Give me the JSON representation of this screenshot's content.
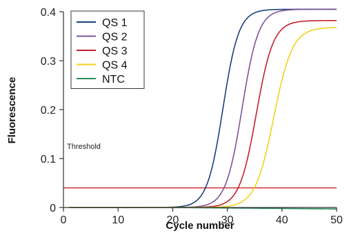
{
  "chart_data": {
    "type": "line",
    "xlabel": "Cycle number",
    "ylabel": "Fluorescence",
    "xlim": [
      0,
      50
    ],
    "ylim": [
      0,
      0.4
    ],
    "x_ticks": [
      "0",
      "10",
      "20",
      "30",
      "40",
      "50"
    ],
    "y_ticks": [
      "0",
      "0.1",
      "0.2",
      "0.3",
      "0.4"
    ],
    "grid": false,
    "legend_position": "top-left",
    "threshold": {
      "label": "Threshold",
      "value": 0.04,
      "color": "#cc2222"
    },
    "series": [
      {
        "name": "QS 1",
        "color": "#1a3f7a",
        "x_start": 1,
        "x_end": 50,
        "baseline": 0.0,
        "plateau": 0.405,
        "midpoint": 29.2,
        "slope": 1.45
      },
      {
        "name": "QS 2",
        "color": "#7e5496",
        "x_start": 1,
        "x_end": 50,
        "baseline": 0.0,
        "plateau": 0.405,
        "midpoint": 32.7,
        "slope": 1.5
      },
      {
        "name": "QS 3",
        "color": "#c3202b",
        "x_start": 1,
        "x_end": 50,
        "baseline": 0.0,
        "plateau": 0.382,
        "midpoint": 35.3,
        "slope": 1.55
      },
      {
        "name": "QS 4",
        "color": "#f2d21b",
        "x_start": 1,
        "x_end": 50,
        "baseline": 0.0,
        "plateau": 0.368,
        "midpoint": 38.5,
        "slope": 1.7
      },
      {
        "name": "NTC",
        "color": "#2a8a5c",
        "x_start": 1,
        "x_end": 50,
        "baseline": 0.0,
        "drift_start": 20,
        "end_value": -0.003
      }
    ]
  }
}
